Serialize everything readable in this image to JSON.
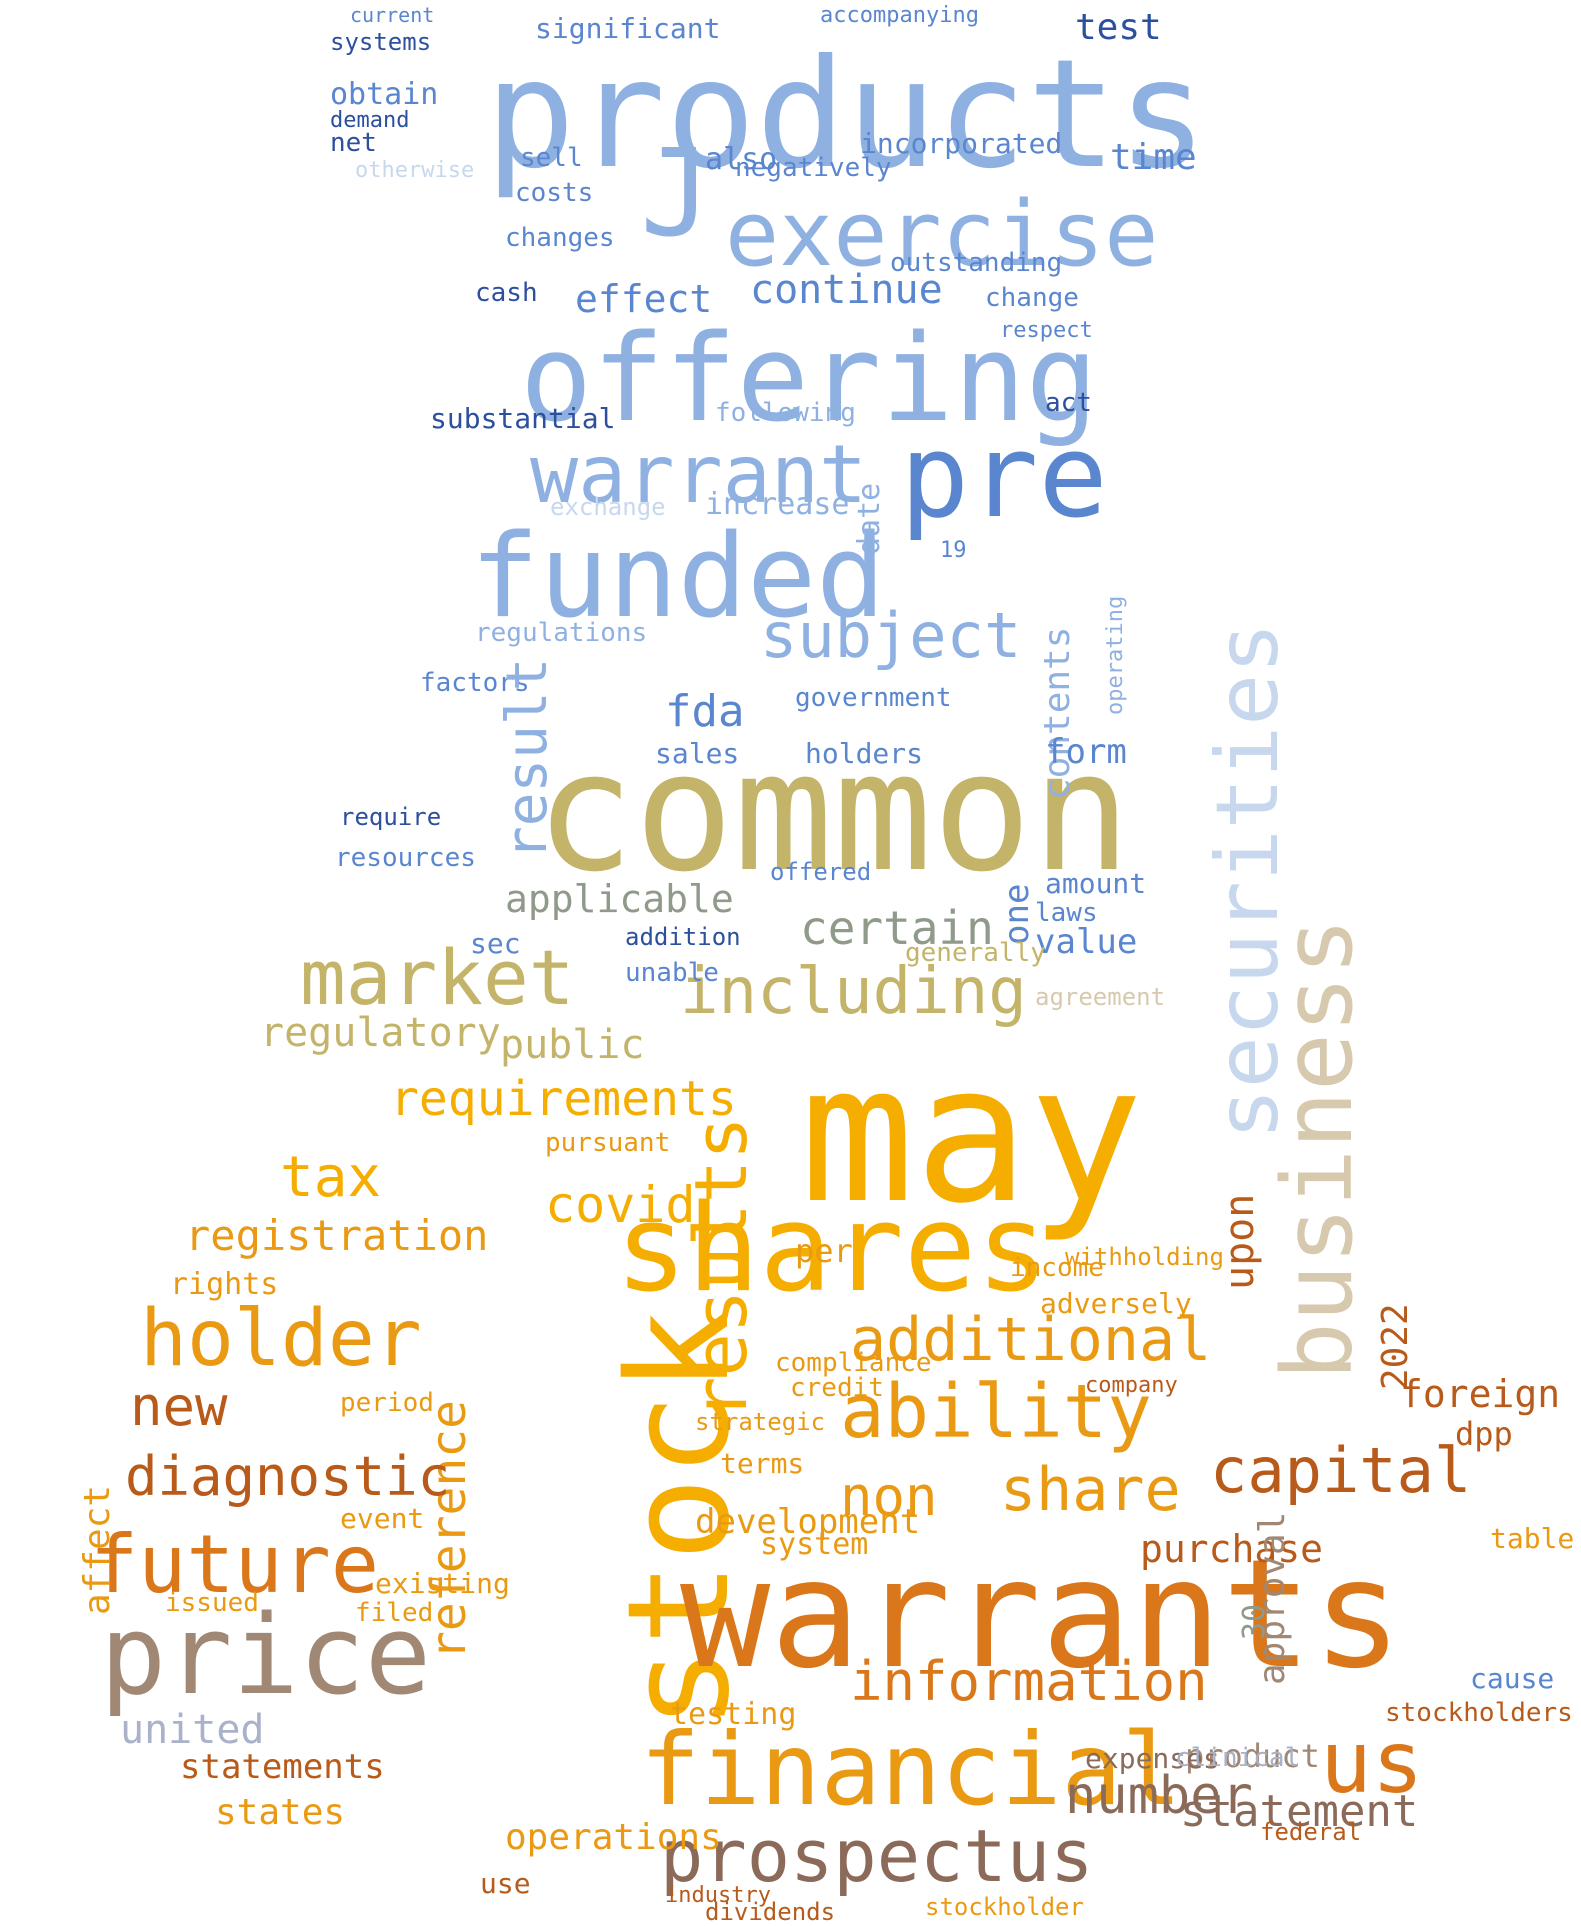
{
  "palette": {
    "blue_dark": "#2c4f9e",
    "blue_mid": "#5a86d0",
    "blue_light": "#8fb1e2",
    "blue_pale": "#c7d8ee",
    "olive": "#c4b46a",
    "sage": "#8f9a8a",
    "sand": "#d7c9ae",
    "gold": "#f5ad00",
    "amber": "#ea9a12",
    "orange": "#d9771a",
    "rust": "#b85a1a",
    "brown": "#8b6a5a",
    "mauve": "#a08874",
    "gray_blue": "#a9b2c9"
  },
  "words": [
    {
      "t": "products",
      "c": "blue_light"
    },
    {
      "t": "J",
      "c": "blue_light"
    },
    {
      "t": "exercise",
      "c": "blue_light"
    },
    {
      "t": "offering",
      "c": "blue_light"
    },
    {
      "t": "pre",
      "c": "blue_mid"
    },
    {
      "t": "warrant",
      "c": "blue_light"
    },
    {
      "t": "funded",
      "c": "blue_light"
    },
    {
      "t": "subject",
      "c": "blue_light"
    },
    {
      "t": "common",
      "c": "olive"
    },
    {
      "t": "market",
      "c": "olive"
    },
    {
      "t": "including",
      "c": "olive"
    },
    {
      "t": "may",
      "c": "gold"
    },
    {
      "t": "stock",
      "c": "gold"
    },
    {
      "t": "shares",
      "c": "gold"
    },
    {
      "t": "warrants",
      "c": "orange"
    },
    {
      "t": "price",
      "c": "mauve"
    },
    {
      "t": "holder",
      "c": "amber"
    },
    {
      "t": "future",
      "c": "orange"
    },
    {
      "t": "capital",
      "c": "rust"
    },
    {
      "t": "financial",
      "c": "amber"
    },
    {
      "t": "prospectus",
      "c": "brown"
    },
    {
      "t": "information",
      "c": "orange"
    },
    {
      "t": "us",
      "c": "orange"
    },
    {
      "t": "ability",
      "c": "amber"
    },
    {
      "t": "additional",
      "c": "amber"
    },
    {
      "t": "business",
      "c": "sand"
    },
    {
      "t": "securities",
      "c": "blue_pale"
    },
    {
      "t": "results",
      "c": "gold"
    },
    {
      "t": "reference",
      "c": "amber"
    },
    {
      "t": "diagnostic",
      "c": "rust"
    },
    {
      "t": "share",
      "c": "amber"
    },
    {
      "t": "non",
      "c": "amber"
    },
    {
      "t": "tax",
      "c": "gold"
    },
    {
      "t": "covid",
      "c": "gold"
    },
    {
      "t": "requirements",
      "c": "gold"
    },
    {
      "t": "registration",
      "c": "amber"
    },
    {
      "t": "regulatory",
      "c": "olive"
    },
    {
      "t": "public",
      "c": "olive"
    },
    {
      "t": "certain",
      "c": "sage"
    },
    {
      "t": "applicable",
      "c": "sage"
    },
    {
      "t": "contents",
      "c": "blue_light"
    },
    {
      "t": "fda",
      "c": "blue_mid"
    },
    {
      "t": "test",
      "c": "blue_dark"
    },
    {
      "t": "time",
      "c": "blue_mid"
    },
    {
      "t": "continue",
      "c": "blue_mid"
    },
    {
      "t": "effect",
      "c": "blue_mid"
    },
    {
      "t": "significant",
      "c": "blue_mid"
    },
    {
      "t": "incorporated",
      "c": "blue_mid"
    },
    {
      "t": "outstanding",
      "c": "blue_mid"
    },
    {
      "t": "negatively",
      "c": "blue_mid"
    },
    {
      "t": "also",
      "c": "blue_mid"
    },
    {
      "t": "obtain",
      "c": "blue_mid"
    },
    {
      "t": "net",
      "c": "blue_dark"
    },
    {
      "t": "systems",
      "c": "blue_dark"
    },
    {
      "t": "demand",
      "c": "blue_dark"
    },
    {
      "t": "sell",
      "c": "blue_mid"
    },
    {
      "t": "costs",
      "c": "blue_mid"
    },
    {
      "t": "changes",
      "c": "blue_mid"
    },
    {
      "t": "cash",
      "c": "blue_dark"
    },
    {
      "t": "substantial",
      "c": "blue_dark"
    },
    {
      "t": "following",
      "c": "blue_light"
    },
    {
      "t": "increase",
      "c": "blue_light"
    },
    {
      "t": "exchange",
      "c": "blue_pale"
    },
    {
      "t": "regulations",
      "c": "blue_light"
    },
    {
      "t": "factors",
      "c": "blue_mid"
    },
    {
      "t": "result",
      "c": "blue_light"
    },
    {
      "t": "government",
      "c": "blue_mid"
    },
    {
      "t": "form",
      "c": "blue_mid"
    },
    {
      "t": "holders",
      "c": "blue_mid"
    },
    {
      "t": "sales",
      "c": "blue_mid"
    },
    {
      "t": "operating",
      "c": "blue_light"
    },
    {
      "t": "act",
      "c": "blue_dark"
    },
    {
      "t": "change",
      "c": "blue_mid"
    },
    {
      "t": "respect",
      "c": "blue_mid"
    },
    {
      "t": "accompanying",
      "c": "blue_mid"
    },
    {
      "t": "current",
      "c": "blue_mid"
    },
    {
      "t": "otherwise",
      "c": "blue_pale"
    },
    {
      "t": "date",
      "c": "blue_light"
    },
    {
      "t": "19",
      "c": "blue_mid"
    },
    {
      "t": "one",
      "c": "blue_mid"
    },
    {
      "t": "value",
      "c": "blue_mid"
    },
    {
      "t": "amount",
      "c": "blue_mid"
    },
    {
      "t": "laws",
      "c": "blue_mid"
    },
    {
      "t": "sec",
      "c": "blue_mid"
    },
    {
      "t": "unable",
      "c": "blue_mid"
    },
    {
      "t": "addition",
      "c": "blue_dark"
    },
    {
      "t": "require",
      "c": "blue_dark"
    },
    {
      "t": "resources",
      "c": "blue_mid"
    },
    {
      "t": "offered",
      "c": "blue_mid"
    },
    {
      "t": "generally",
      "c": "olive"
    },
    {
      "t": "agreement",
      "c": "sand"
    },
    {
      "t": "upon",
      "c": "rust"
    },
    {
      "t": "2022",
      "c": "rust"
    },
    {
      "t": "foreign",
      "c": "rust"
    },
    {
      "t": "dpp",
      "c": "rust"
    },
    {
      "t": "purchase",
      "c": "rust"
    },
    {
      "t": "table",
      "c": "amber"
    },
    {
      "t": "new",
      "c": "rust"
    },
    {
      "t": "number",
      "c": "brown"
    },
    {
      "t": "statement",
      "c": "brown"
    },
    {
      "t": "product",
      "c": "mauve"
    },
    {
      "t": "united",
      "c": "gray_blue"
    },
    {
      "t": "states",
      "c": "amber"
    },
    {
      "t": "affect",
      "c": "amber"
    },
    {
      "t": "operations",
      "c": "amber"
    },
    {
      "t": "development",
      "c": "amber"
    },
    {
      "t": "system",
      "c": "amber"
    },
    {
      "t": "event",
      "c": "amber"
    },
    {
      "t": "adversely",
      "c": "amber"
    },
    {
      "t": "per",
      "c": "amber"
    },
    {
      "t": "income",
      "c": "amber"
    },
    {
      "t": "testing",
      "c": "amber"
    },
    {
      "t": "approval",
      "c": "mauve"
    },
    {
      "t": "statements",
      "c": "rust"
    },
    {
      "t": "stockholders",
      "c": "rust"
    },
    {
      "t": "expenses",
      "c": "brown"
    },
    {
      "t": "clinical",
      "c": "gray_blue"
    },
    {
      "t": "federal",
      "c": "rust"
    },
    {
      "t": "use",
      "c": "rust"
    },
    {
      "t": "industry",
      "c": "rust"
    },
    {
      "t": "dividends",
      "c": "rust"
    },
    {
      "t": "stockholder",
      "c": "amber"
    },
    {
      "t": "pursuant",
      "c": "amber"
    },
    {
      "t": "rights",
      "c": "amber"
    },
    {
      "t": "terms",
      "c": "amber"
    },
    {
      "t": "existing",
      "c": "amber"
    },
    {
      "t": "issued",
      "c": "amber"
    },
    {
      "t": "filed",
      "c": "amber"
    },
    {
      "t": "period",
      "c": "amber"
    },
    {
      "t": "compliance",
      "c": "amber"
    },
    {
      "t": "credit",
      "c": "amber"
    },
    {
      "t": "strategic",
      "c": "amber"
    },
    {
      "t": "withholding",
      "c": "amber"
    },
    {
      "t": "company",
      "c": "rust"
    },
    {
      "t": "30",
      "c": "sage"
    },
    {
      "t": "cause",
      "c": "blue_mid"
    }
  ]
}
